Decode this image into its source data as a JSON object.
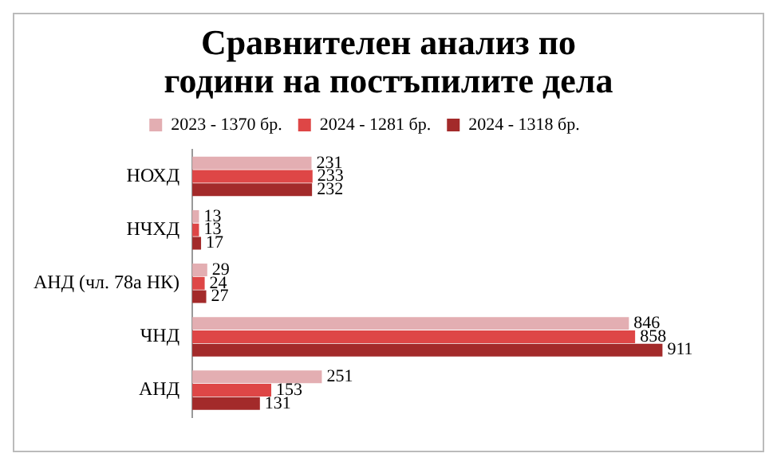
{
  "chart_data": {
    "type": "bar",
    "orientation": "horizontal",
    "title": "Сравнителен анализ по години на постъпилите дела",
    "categories": [
      "НОХД",
      "НЧХД",
      "АНД (чл. 78а НК)",
      "ЧНД",
      "АНД"
    ],
    "series": [
      {
        "name": "2023 - 1370 бр.",
        "color": "#e3aeb2",
        "values": [
          231,
          13,
          29,
          846,
          251
        ]
      },
      {
        "name": "2024 - 1281 бр.",
        "color": "#de4646",
        "values": [
          233,
          13,
          24,
          858,
          153
        ]
      },
      {
        "name": "2024 - 1318 бр.",
        "color": "#a32a2a",
        "values": [
          232,
          17,
          27,
          911,
          131
        ]
      }
    ],
    "tick_labels": "y",
    "data_labels": true,
    "legend": "top",
    "grid": false
  }
}
